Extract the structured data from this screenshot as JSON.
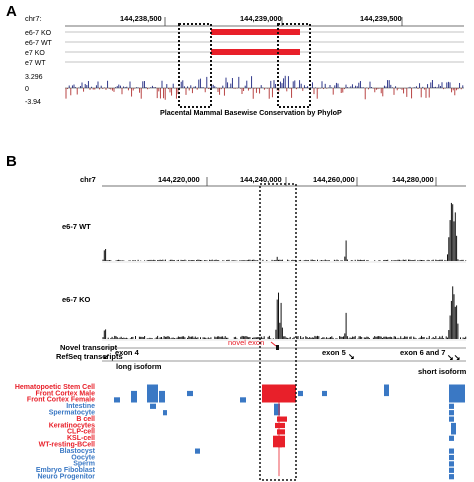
{
  "panel_a": {
    "letter": "A",
    "chrom": "chr7:",
    "positions": [
      "144,238,500",
      "144,239,000",
      "144,239,500"
    ],
    "tracks": [
      "e6-7 KO",
      "e6-7 WT",
      "e7 KO",
      "e7 WT"
    ],
    "conservation_max": "3.296",
    "conservation_zero": "0",
    "conservation_min": "-3.94",
    "conservation_caption": "Placental Mammal Basewise Conservation by PhyloP"
  },
  "panel_b": {
    "letter": "B",
    "chrom": "chr7",
    "positions": [
      "144,220,000",
      "144,240,000",
      "144,260,000",
      "144,280,000"
    ],
    "coverage_tracks": [
      "e6-7 WT",
      "e6-7 KO"
    ],
    "novel_transcript_label": "Novel transcript",
    "refseq_label": "RefSeq transcripts",
    "novel_exon": "novel exon",
    "exon4": "exon 4",
    "exon5": "exon 5",
    "exon67": "exon 6 and 7",
    "long_isoform": "long isoform",
    "short_isoform": "short isoform",
    "tissues": [
      {
        "label": "Hematopoetic Stem Cell",
        "color": "#e8202a"
      },
      {
        "label": "Front Cortex Male",
        "color": "#e8202a"
      },
      {
        "label": "Front Cortex Female",
        "color": "#e8202a"
      },
      {
        "label": "Intestine",
        "color": "#3a78c4"
      },
      {
        "label": "Spermatocyte",
        "color": "#3a78c4"
      },
      {
        "label": "B cell",
        "color": "#e8202a"
      },
      {
        "label": "Keratinocytes",
        "color": "#e8202a"
      },
      {
        "label": "CLP-cell",
        "color": "#e8202a"
      },
      {
        "label": "KSL-cell",
        "color": "#e8202a"
      },
      {
        "label": "WT-resting-BCell",
        "color": "#e8202a"
      },
      {
        "label": "Blastocyst",
        "color": "#3a78c4"
      },
      {
        "label": "Oocyte",
        "color": "#3a78c4"
      },
      {
        "label": "Sperm",
        "color": "#3a78c4"
      },
      {
        "label": "Embryo Fiboblast",
        "color": "#3a78c4"
      },
      {
        "label": "Neuro Progenitor",
        "color": "#3a78c4"
      }
    ]
  },
  "colors": {
    "red": "#e8202a",
    "blue": "#3a78c4",
    "navy": "#1a237e",
    "cons_red": "#b03030"
  }
}
